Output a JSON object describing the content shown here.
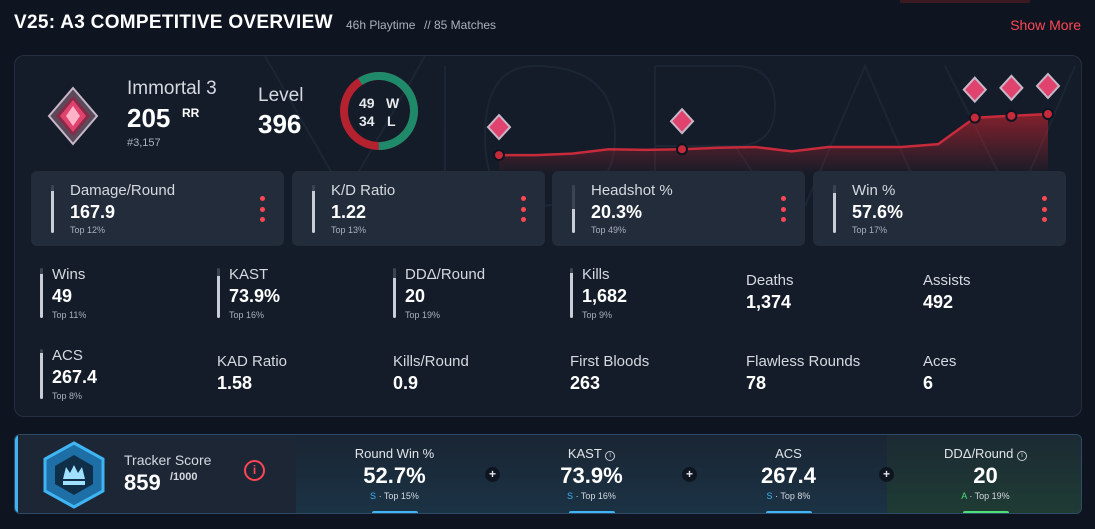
{
  "header": {
    "title": "V25: A3 COMPETITIVE OVERVIEW",
    "playtime": "46h Playtime",
    "matches": "// 85 Matches",
    "show_more": "Show More"
  },
  "rank": {
    "name": "Immortal 3",
    "rr": "205",
    "rr_label": "RR",
    "position": "#3,157"
  },
  "level": {
    "label": "Level",
    "value": "396"
  },
  "record": {
    "wins": "49",
    "wins_label": "W",
    "losses": "34",
    "losses_label": "L"
  },
  "colors": {
    "accent": "#ff4655",
    "win": "#1f8a6a",
    "loss": "#b3222e",
    "tracker": "#3fb5f3",
    "tracker_green": "#4ee07a"
  },
  "rr_trend": {
    "points": [
      8,
      8,
      12,
      24,
      22,
      24,
      28,
      30,
      18,
      30,
      30,
      30,
      38,
      110,
      115,
      120
    ],
    "peak_markers": [
      0,
      5,
      13,
      14,
      15
    ]
  },
  "cards": [
    {
      "label": "Damage/Round",
      "value": "167.9",
      "percentile": "Top 12%",
      "fill": 0.88
    },
    {
      "label": "K/D Ratio",
      "value": "1.22",
      "percentile": "Top 13%",
      "fill": 0.87
    },
    {
      "label": "Headshot %",
      "value": "20.3%",
      "percentile": "Top 49%",
      "fill": 0.51
    },
    {
      "label": "Win %",
      "value": "57.6%",
      "percentile": "Top 17%",
      "fill": 0.83
    }
  ],
  "stats": [
    {
      "label": "Wins",
      "value": "49",
      "percentile": "Top 11%",
      "fill": 0.89
    },
    {
      "label": "KAST",
      "value": "73.9%",
      "percentile": "Top 16%",
      "fill": 0.84
    },
    {
      "label": "DDΔ/Round",
      "value": "20",
      "percentile": "Top 19%",
      "fill": 0.81
    },
    {
      "label": "Kills",
      "value": "1,682",
      "percentile": "Top 9%",
      "fill": 0.91
    },
    {
      "label": "Deaths",
      "value": "1,374"
    },
    {
      "label": "Assists",
      "value": "492"
    },
    {
      "label": "ACS",
      "value": "267.4",
      "percentile": "Top 8%",
      "fill": 0.92
    },
    {
      "label": "KAD Ratio",
      "value": "1.58"
    },
    {
      "label": "Kills/Round",
      "value": "0.9"
    },
    {
      "label": "First Bloods",
      "value": "263"
    },
    {
      "label": "Flawless Rounds",
      "value": "78"
    },
    {
      "label": "Aces",
      "value": "6"
    }
  ],
  "tracker": {
    "label": "Tracker Score",
    "value": "859",
    "max": "/1000",
    "info": "i",
    "cells": [
      {
        "label": "Round Win %",
        "value": "52.7%",
        "grade": "S",
        "sub": "· Top 15%"
      },
      {
        "label": "KAST",
        "value": "73.9%",
        "grade": "S",
        "sub": "· Top 16%",
        "info": "i"
      },
      {
        "label": "ACS",
        "value": "267.4",
        "grade": "S",
        "sub": "· Top 8%"
      },
      {
        "label": "DDΔ/Round",
        "value": "20",
        "grade": "A",
        "sub": "· Top 19%",
        "info": "i"
      }
    ],
    "plus": "+"
  }
}
